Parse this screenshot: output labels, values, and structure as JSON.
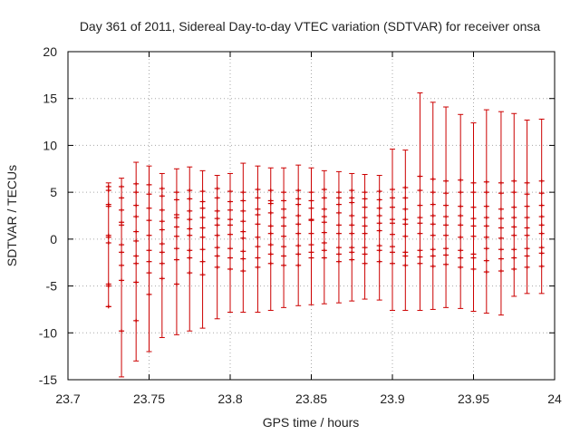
{
  "chart_data": {
    "type": "scatter",
    "title": "Day 361 of 2011, Sidereal Day-to-day VTEC variation (SDTVAR) for receiver onsa",
    "xlabel": "GPS time / hours",
    "ylabel": "SDTVAR / TECUs",
    "xlim": [
      23.7,
      24.0
    ],
    "ylim": [
      -15,
      20
    ],
    "xticks": [
      "23.7",
      "23.75",
      "23.8",
      "23.85",
      "23.9",
      "23.95",
      "24"
    ],
    "yticks": [
      "-15",
      "-10",
      "-5",
      "0",
      "5",
      "10",
      "15",
      "20"
    ],
    "grid": true,
    "series_color": "#cc0000",
    "error_bars": [
      {
        "x": 23.725,
        "low": -7.2,
        "high": 6.0
      },
      {
        "x": 23.733,
        "low": -14.7,
        "high": 6.5
      },
      {
        "x": 23.742,
        "low": -13.0,
        "high": 8.2
      },
      {
        "x": 23.75,
        "low": -12.0,
        "high": 7.8
      },
      {
        "x": 23.758,
        "low": -10.5,
        "high": 7.0
      },
      {
        "x": 23.767,
        "low": -10.2,
        "high": 7.5
      },
      {
        "x": 23.775,
        "low": -9.8,
        "high": 7.7
      },
      {
        "x": 23.783,
        "low": -9.5,
        "high": 7.3
      },
      {
        "x": 23.792,
        "low": -8.5,
        "high": 6.8
      },
      {
        "x": 23.8,
        "low": -7.8,
        "high": 7.0
      },
      {
        "x": 23.808,
        "low": -7.8,
        "high": 8.1
      },
      {
        "x": 23.817,
        "low": -7.8,
        "high": 7.8
      },
      {
        "x": 23.825,
        "low": -7.6,
        "high": 7.6
      },
      {
        "x": 23.833,
        "low": -7.3,
        "high": 7.6
      },
      {
        "x": 23.842,
        "low": -7.1,
        "high": 7.9
      },
      {
        "x": 23.85,
        "low": -7.0,
        "high": 7.6
      },
      {
        "x": 23.858,
        "low": -6.9,
        "high": 7.3
      },
      {
        "x": 23.867,
        "low": -6.8,
        "high": 7.2
      },
      {
        "x": 23.875,
        "low": -6.6,
        "high": 7.0
      },
      {
        "x": 23.883,
        "low": -6.4,
        "high": 6.9
      },
      {
        "x": 23.892,
        "low": -6.5,
        "high": 6.8
      },
      {
        "x": 23.9,
        "low": -7.6,
        "high": 9.6
      },
      {
        "x": 23.908,
        "low": -7.6,
        "high": 9.5
      },
      {
        "x": 23.917,
        "low": -7.6,
        "high": 15.6
      },
      {
        "x": 23.925,
        "low": -7.5,
        "high": 14.6
      },
      {
        "x": 23.933,
        "low": -7.3,
        "high": 14.1
      },
      {
        "x": 23.942,
        "low": -7.4,
        "high": 13.3
      },
      {
        "x": 23.95,
        "low": -7.7,
        "high": 12.4
      },
      {
        "x": 23.958,
        "low": -7.9,
        "high": 13.8
      },
      {
        "x": 23.967,
        "low": -8.1,
        "high": 13.6
      },
      {
        "x": 23.975,
        "low": -6.1,
        "high": 13.4
      },
      {
        "x": 23.983,
        "low": -5.8,
        "high": 12.7
      },
      {
        "x": 23.992,
        "low": -5.8,
        "high": 12.8
      }
    ],
    "points_per_epoch": [
      [
        5.6,
        5.2,
        3.7,
        3.5,
        0.4,
        0.2,
        -0.4,
        -4.8,
        -5.0,
        -7.2
      ],
      [
        5.6,
        4.4,
        3.1,
        1.8,
        1.5,
        -0.6,
        -1.4,
        -2.8,
        -4.4,
        -9.8
      ],
      [
        5.9,
        5.0,
        3.6,
        2.4,
        0.8,
        -0.2,
        -1.8,
        -2.6,
        -4.6,
        -8.7
      ],
      [
        5.8,
        4.8,
        3.3,
        2.0,
        0.4,
        -1.2,
        -2.4,
        -3.6,
        -5.9
      ],
      [
        5.4,
        4.6,
        3.1,
        1.9,
        1.0,
        -0.5,
        -1.4,
        -2.6,
        -4.2
      ],
      [
        5.0,
        4.2,
        2.6,
        2.3,
        1.3,
        0.3,
        -1.0,
        -2.2,
        -4.8
      ],
      [
        5.2,
        4.3,
        3.0,
        2.1,
        1.1,
        0.4,
        -1.2,
        -2.0,
        -3.6
      ],
      [
        5.1,
        4.0,
        3.3,
        2.3,
        1.2,
        0.2,
        -1.1,
        -2.4,
        -3.8
      ],
      [
        5.4,
        4.4,
        3.0,
        2.2,
        1.5,
        0.4,
        -0.9,
        -1.8,
        -3.0
      ],
      [
        5.1,
        4.0,
        3.1,
        2.1,
        1.5,
        0.5,
        -1.0,
        -2.0,
        -3.2
      ],
      [
        5.0,
        4.1,
        3.0,
        1.9,
        0.8,
        0.1,
        -1.3,
        -2.1,
        -3.4
      ],
      [
        5.3,
        4.4,
        3.2,
        2.6,
        1.6,
        0.2,
        -0.8,
        -2.0,
        -3.0
      ],
      [
        5.2,
        4.1,
        3.8,
        2.8,
        1.4,
        0.6,
        -0.6,
        -1.6,
        -2.6
      ],
      [
        5.0,
        4.1,
        3.2,
        2.3,
        1.4,
        0.3,
        -0.8,
        -1.8,
        -2.8
      ],
      [
        5.2,
        4.3,
        3.7,
        2.5,
        1.6,
        0.6,
        -0.7,
        -1.6,
        -2.8
      ],
      [
        5.0,
        4.1,
        3.3,
        2.1,
        2.0,
        0.6,
        -0.6,
        -1.4,
        -2.0
      ],
      [
        5.3,
        4.4,
        3.2,
        2.4,
        1.8,
        0.7,
        -0.4,
        -1.2,
        -2.0
      ],
      [
        5.0,
        4.4,
        3.7,
        2.8,
        1.5,
        0.6,
        -0.9,
        -1.6,
        -2.4
      ],
      [
        5.2,
        4.4,
        3.9,
        2.5,
        1.5,
        0.6,
        -0.9,
        -1.4,
        -2.2
      ],
      [
        5.0,
        4.3,
        3.4,
        2.3,
        1.4,
        0.6,
        -0.9,
        -1.6,
        -2.6
      ],
      [
        5.1,
        4.2,
        3.3,
        2.5,
        1.7,
        0.9,
        -0.7,
        -1.2,
        -2.4
      ],
      [
        5.3,
        4.4,
        3.4,
        2.1,
        1.7,
        0.5,
        -0.8,
        -1.4,
        -2.6
      ],
      [
        5.5,
        4.4,
        3.2,
        2.1,
        1.6,
        0.3,
        -1.4,
        -1.8,
        -2.8
      ],
      [
        6.7,
        5.2,
        3.6,
        2.3,
        1.7,
        0.6,
        -1.2,
        -1.9,
        -2.6
      ],
      [
        6.4,
        5.0,
        3.7,
        2.5,
        1.6,
        0.4,
        -1.1,
        -1.8,
        -2.9
      ],
      [
        6.2,
        4.9,
        3.6,
        2.4,
        1.5,
        0.4,
        -1.0,
        -1.7,
        -2.7
      ],
      [
        6.3,
        5.0,
        3.5,
        2.5,
        1.5,
        0.2,
        -1.2,
        -2.0,
        -3.0
      ],
      [
        6.0,
        5.0,
        3.4,
        2.2,
        1.4,
        0.3,
        -1.6,
        -2.0,
        -3.2
      ],
      [
        6.1,
        5.0,
        3.5,
        2.3,
        1.4,
        0.2,
        -1.0,
        -2.3,
        -3.5
      ],
      [
        6.0,
        4.9,
        3.2,
        2.2,
        1.2,
        0.1,
        -1.1,
        -2.1,
        -3.4
      ],
      [
        6.2,
        5.0,
        3.4,
        2.3,
        1.3,
        0.4,
        -1.1,
        -2.0,
        -3.2
      ],
      [
        6.0,
        4.8,
        3.5,
        2.3,
        1.2,
        0.4,
        -1.0,
        -1.8,
        -3.0
      ],
      [
        6.2,
        4.9,
        3.6,
        2.4,
        1.5,
        0.6,
        -0.9,
        -1.5,
        -2.9
      ]
    ]
  }
}
